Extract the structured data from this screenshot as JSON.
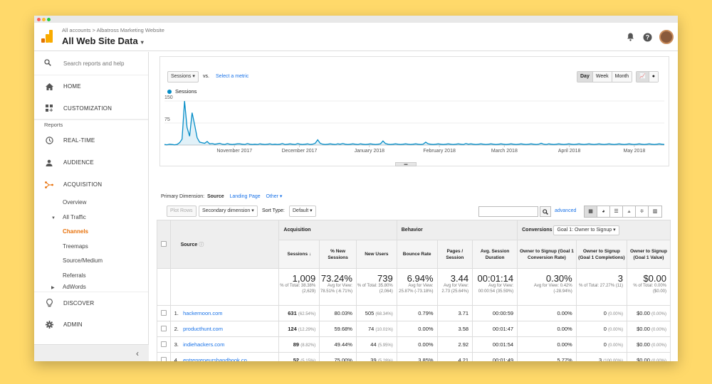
{
  "header": {
    "breadcrumb": "All accounts > Albatross Marketing Website",
    "view_title": "All Web Site Data",
    "view_caret": "▾"
  },
  "sidebar": {
    "search_placeholder": "Search reports and help",
    "home": "HOME",
    "customization": "CUSTOMIZATION",
    "reports_label": "Reports",
    "realtime": "REAL-TIME",
    "audience": "AUDIENCE",
    "acquisition": "ACQUISITION",
    "sub": {
      "overview": "Overview",
      "all_traffic": "All Traffic",
      "channels": "Channels",
      "treemaps": "Treemaps",
      "source_medium": "Source/Medium",
      "referrals": "Referrals",
      "adwords": "AdWords"
    },
    "discover": "DISCOVER",
    "admin": "ADMIN",
    "collapse": "‹"
  },
  "chart_controls": {
    "metric": "Sessions",
    "vs": "vs.",
    "select_metric": "Select a metric",
    "day": "Day",
    "week": "Week",
    "month": "Month",
    "expand": "▬"
  },
  "chart_data": {
    "type": "line",
    "series": [
      {
        "name": "Sessions",
        "values": [
          2,
          1,
          3,
          2,
          1,
          2,
          8,
          20,
          150,
          60,
          30,
          110,
          70,
          25,
          10,
          8,
          6,
          12,
          4,
          5,
          3,
          4,
          6,
          3,
          2,
          5,
          3,
          2,
          3,
          4,
          4,
          3,
          2,
          5,
          3,
          2,
          3,
          2,
          4,
          3,
          2,
          3,
          4,
          2,
          3,
          2,
          3,
          5,
          2,
          3,
          4,
          3,
          2,
          5,
          3,
          2,
          3,
          4,
          2,
          3,
          6,
          18,
          6,
          3,
          2,
          3,
          4,
          3,
          2,
          4,
          3,
          5,
          3,
          2,
          3,
          4,
          3,
          2,
          4,
          3,
          2,
          3,
          4,
          3,
          2,
          3,
          4,
          14,
          5,
          3,
          2,
          3,
          4,
          3,
          2,
          3,
          4,
          3,
          2,
          3,
          4,
          3,
          2,
          3,
          10,
          4,
          3,
          2,
          3,
          4,
          3,
          2,
          3,
          4,
          3,
          2,
          3,
          4,
          3,
          2,
          5,
          3,
          4,
          3,
          2,
          3,
          4,
          3,
          2,
          3,
          4,
          3,
          2,
          3,
          4,
          3,
          2,
          3,
          4,
          3,
          2,
          3,
          4,
          3,
          2,
          3,
          4,
          3,
          2,
          3,
          6,
          3,
          2,
          4,
          3,
          2,
          3,
          4,
          3,
          2,
          3,
          4,
          3,
          2,
          3,
          4,
          3,
          2,
          3,
          4,
          3,
          2,
          3,
          4,
          3,
          2,
          3,
          4,
          3,
          2,
          3,
          4,
          3,
          2,
          3,
          4,
          3,
          2,
          3,
          4,
          3,
          2,
          3,
          4,
          3,
          2,
          3,
          4,
          3,
          2
        ]
      }
    ],
    "x_ticks": [
      "November 2017",
      "December 2017",
      "January 2018",
      "February 2018",
      "March 2018",
      "April 2018",
      "May 2018"
    ],
    "y_ticks": [
      "150",
      "75"
    ],
    "ylim": [
      0,
      150
    ],
    "legend": "top-left"
  },
  "dimension": {
    "label": "Primary Dimension:",
    "source": "Source",
    "landing": "Landing Page",
    "other": "Other ▾"
  },
  "toolbar": {
    "plot_rows": "Plot Rows",
    "secondary": "Secondary dimension",
    "sort_type": "Sort Type:",
    "default": "Default",
    "advanced": "advanced"
  },
  "table": {
    "groups": {
      "acquisition": "Acquisition",
      "behavior": "Behavior",
      "conversions": "Conversions",
      "goal": "Goal 1: Owner to Signup"
    },
    "cols": {
      "source": "Source",
      "sessions": "Sessions",
      "new_sessions": "% New Sessions",
      "new_users": "New Users",
      "bounce": "Bounce Rate",
      "pages": "Pages / Session",
      "duration": "Avg. Session Duration",
      "g_rate": "Owner to Signup (Goal 1 Conversion Rate)",
      "g_comp": "Owner to Signup (Goal 1 Completions)",
      "g_value": "Owner to Signup (Goal 1 Value)"
    },
    "totals": {
      "sessions": "1,009",
      "sessions_sub": "% of Total: 38.38% (2,629)",
      "new_sessions": "73.24%",
      "new_sessions_sub": "Avg for View: 78.51% (-6.71%)",
      "new_users": "739",
      "new_users_sub": "% of Total: 35.80% (2,064)",
      "bounce": "6.94%",
      "bounce_sub": "Avg for View: 25.87% (-73.18%)",
      "pages": "3.44",
      "pages_sub": "Avg for View: 2.73 (25.64%)",
      "duration": "00:01:14",
      "duration_sub": "Avg for View: 00:00:54 (35.59%)",
      "g_rate": "0.30%",
      "g_rate_sub": "Avg for View: 0.42% (-28.94%)",
      "g_comp": "3",
      "g_comp_sub": "% of Total: 27.27% (11)",
      "g_value": "$0.00",
      "g_value_sub": "% of Total: 0.00% ($0.00)"
    },
    "rows": [
      {
        "n": "1.",
        "source": "hackernoon.com",
        "sessions": "631",
        "sessions_pct": "(62.54%)",
        "new_sessions": "80.03%",
        "new_users": "505",
        "new_users_pct": "(68.34%)",
        "bounce": "0.79%",
        "pages": "3.71",
        "duration": "00:00:59",
        "g_rate": "0.00%",
        "g_comp": "0",
        "g_comp_pct": "(0.00%)",
        "g_value": "$0.00",
        "g_value_pct": "(0.00%)"
      },
      {
        "n": "2.",
        "source": "producthunt.com",
        "sessions": "124",
        "sessions_pct": "(12.29%)",
        "new_sessions": "59.68%",
        "new_users": "74",
        "new_users_pct": "(10.01%)",
        "bounce": "0.00%",
        "pages": "3.58",
        "duration": "00:01:47",
        "g_rate": "0.00%",
        "g_comp": "0",
        "g_comp_pct": "(0.00%)",
        "g_value": "$0.00",
        "g_value_pct": "(0.00%)"
      },
      {
        "n": "3.",
        "source": "indiehackers.com",
        "sessions": "89",
        "sessions_pct": "(8.82%)",
        "new_sessions": "49.44%",
        "new_users": "44",
        "new_users_pct": "(5.95%)",
        "bounce": "0.00%",
        "pages": "2.92",
        "duration": "00:01:54",
        "g_rate": "0.00%",
        "g_comp": "0",
        "g_comp_pct": "(0.00%)",
        "g_value": "$0.00",
        "g_value_pct": "(0.00%)"
      },
      {
        "n": "4.",
        "source": "entrepreneurshandbook.co",
        "sessions": "52",
        "sessions_pct": "(5.15%)",
        "new_sessions": "75.00%",
        "new_users": "39",
        "new_users_pct": "(5.28%)",
        "bounce": "3.85%",
        "pages": "4.21",
        "duration": "00:01:49",
        "g_rate": "5.77%",
        "g_comp": "3",
        "g_comp_pct": "(100.00%)",
        "g_value": "$0.00",
        "g_value_pct": "(0.00%)"
      }
    ]
  },
  "colors": {
    "accent": "#e8710a",
    "link": "#1a73e8",
    "line": "#058dc7"
  }
}
